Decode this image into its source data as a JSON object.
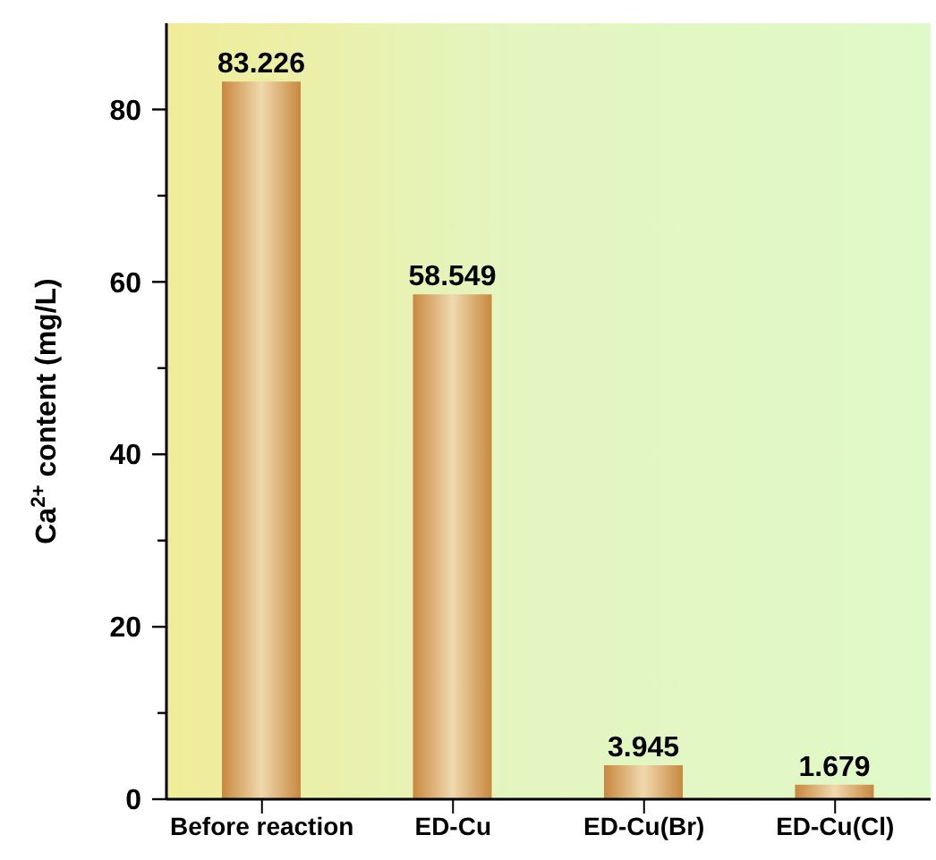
{
  "chart_data": {
    "type": "bar",
    "ylabel": "Ca$^{2+}$ content (mg/L)",
    "categories": [
      "Before reaction",
      "ED-Cu",
      "ED-Cu(Br)",
      "ED-Cu(Cl)"
    ],
    "values": [
      83.226,
      58.549,
      3.945,
      1.679
    ],
    "color": "#c8883f",
    "data_labels": true,
    "ylim": [
      0,
      90
    ],
    "yticks": [
      0,
      {
        "value": 10,
        "label": null
      },
      20,
      {
        "value": 30,
        "label": null
      },
      40,
      {
        "value": 50,
        "label": null
      },
      60,
      {
        "value": 70,
        "label": null
      },
      80
    ],
    "grid": false,
    "legend": false
  }
}
